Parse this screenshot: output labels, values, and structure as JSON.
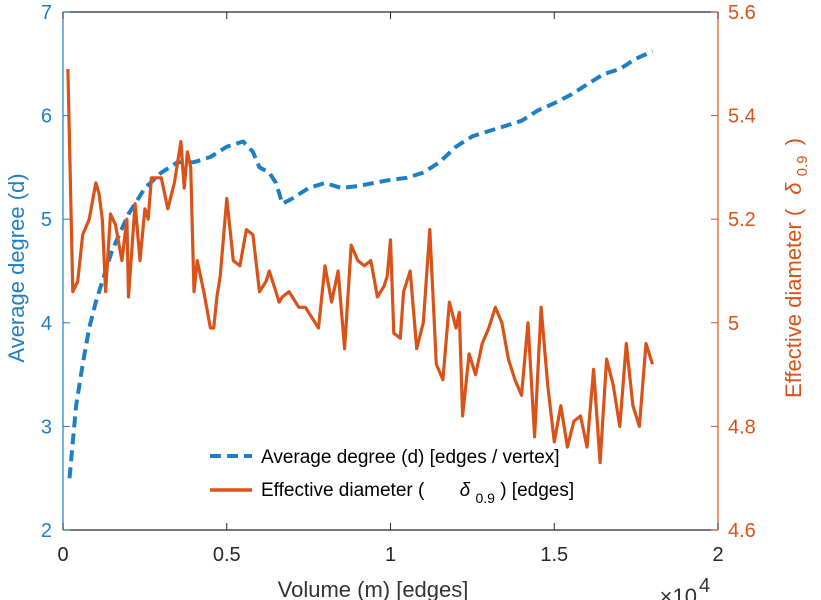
{
  "chart_data": {
    "type": "line",
    "xlabel": "Volume (m) [edges]",
    "x_exponent_label": "×10",
    "x_exponent_power": "4",
    "xlim": [
      0,
      2
    ],
    "xticks": [
      "0",
      "0.5",
      "1",
      "1.5",
      "2"
    ],
    "y_left": {
      "label": "Average degree (d)",
      "ylim": [
        2,
        7
      ],
      "ticks": [
        "2",
        "3",
        "4",
        "5",
        "6",
        "7"
      ],
      "color": "#1f7fc4"
    },
    "y_right": {
      "label_prefix": "Effective diameter (",
      "label_symbol": "δ",
      "label_subscript": "0.9",
      "label_suffix": ")",
      "ylim": [
        4.6,
        5.6
      ],
      "ticks": [
        "4.6",
        "4.8",
        "5",
        "5.2",
        "5.4",
        "5.6"
      ],
      "color": "#d95319"
    },
    "grid": false,
    "legend_placement": "bottom-right",
    "legend": {
      "degree": "Average degree (d) [edges / vertex]",
      "diameter_prefix": "Effective diameter (",
      "diameter_symbol": "δ",
      "diameter_subscript": "0.9",
      "diameter_suffix": ") [edges]"
    },
    "series": [
      {
        "key": "degree",
        "axis": "left",
        "style": "dashed",
        "color": "#1f7fc4",
        "x": [
          0.02,
          0.04,
          0.06,
          0.08,
          0.1,
          0.12,
          0.15,
          0.2,
          0.25,
          0.3,
          0.35,
          0.4,
          0.45,
          0.5,
          0.55,
          0.58,
          0.6,
          0.63,
          0.65,
          0.67,
          0.7,
          0.75,
          0.8,
          0.85,
          0.9,
          0.95,
          1.0,
          1.05,
          1.1,
          1.15,
          1.2,
          1.25,
          1.3,
          1.35,
          1.4,
          1.45,
          1.5,
          1.55,
          1.6,
          1.65,
          1.7,
          1.75,
          1.8
        ],
        "y": [
          2.5,
          3.2,
          3.6,
          3.95,
          4.2,
          4.4,
          4.7,
          5.05,
          5.3,
          5.45,
          5.55,
          5.55,
          5.6,
          5.7,
          5.75,
          5.65,
          5.5,
          5.45,
          5.35,
          5.15,
          5.2,
          5.3,
          5.35,
          5.3,
          5.32,
          5.35,
          5.38,
          5.4,
          5.45,
          5.55,
          5.7,
          5.8,
          5.85,
          5.9,
          5.95,
          6.05,
          6.12,
          6.2,
          6.3,
          6.4,
          6.45,
          6.55,
          6.62
        ]
      },
      {
        "key": "diameter",
        "axis": "right",
        "style": "solid",
        "color": "#d95319",
        "x": [
          0.015,
          0.03,
          0.045,
          0.06,
          0.08,
          0.1,
          0.11,
          0.12,
          0.13,
          0.145,
          0.16,
          0.18,
          0.195,
          0.2,
          0.22,
          0.235,
          0.25,
          0.26,
          0.27,
          0.28,
          0.3,
          0.32,
          0.34,
          0.36,
          0.37,
          0.38,
          0.39,
          0.4,
          0.41,
          0.42,
          0.43,
          0.45,
          0.46,
          0.47,
          0.48,
          0.5,
          0.52,
          0.54,
          0.56,
          0.58,
          0.6,
          0.62,
          0.63,
          0.65,
          0.66,
          0.67,
          0.69,
          0.7,
          0.72,
          0.74,
          0.76,
          0.78,
          0.8,
          0.82,
          0.84,
          0.86,
          0.88,
          0.9,
          0.92,
          0.94,
          0.96,
          0.98,
          0.99,
          1.0,
          1.01,
          1.03,
          1.04,
          1.06,
          1.08,
          1.1,
          1.12,
          1.14,
          1.16,
          1.18,
          1.2,
          1.21,
          1.22,
          1.24,
          1.26,
          1.28,
          1.3,
          1.32,
          1.34,
          1.36,
          1.38,
          1.4,
          1.42,
          1.44,
          1.46,
          1.48,
          1.5,
          1.52,
          1.54,
          1.56,
          1.58,
          1.6,
          1.62,
          1.64,
          1.66,
          1.68,
          1.7,
          1.72,
          1.74,
          1.76,
          1.78,
          1.8
        ],
        "y": [
          5.49,
          5.06,
          5.08,
          5.17,
          5.2,
          5.27,
          5.25,
          5.2,
          5.06,
          5.21,
          5.19,
          5.12,
          5.2,
          5.05,
          5.23,
          5.12,
          5.22,
          5.2,
          5.28,
          5.28,
          5.28,
          5.22,
          5.27,
          5.35,
          5.26,
          5.33,
          5.3,
          5.06,
          5.12,
          5.09,
          5.06,
          4.99,
          4.99,
          5.05,
          5.09,
          5.24,
          5.12,
          5.11,
          5.18,
          5.17,
          5.06,
          5.08,
          5.1,
          5.06,
          5.04,
          5.05,
          5.06,
          5.05,
          5.03,
          5.03,
          5.01,
          4.99,
          5.11,
          5.04,
          5.1,
          4.95,
          5.15,
          5.12,
          5.11,
          5.12,
          5.05,
          5.07,
          5.09,
          5.16,
          4.98,
          4.97,
          5.06,
          5.1,
          4.95,
          5.0,
          5.18,
          4.92,
          4.89,
          5.04,
          4.99,
          5.02,
          4.82,
          4.94,
          4.9,
          4.96,
          4.99,
          5.03,
          5.0,
          4.93,
          4.89,
          4.86,
          5.0,
          4.78,
          5.03,
          4.88,
          4.77,
          4.84,
          4.76,
          4.81,
          4.82,
          4.76,
          4.91,
          4.73,
          4.93,
          4.88,
          4.8,
          4.96,
          4.84,
          4.8,
          4.96,
          4.92
        ]
      }
    ]
  }
}
